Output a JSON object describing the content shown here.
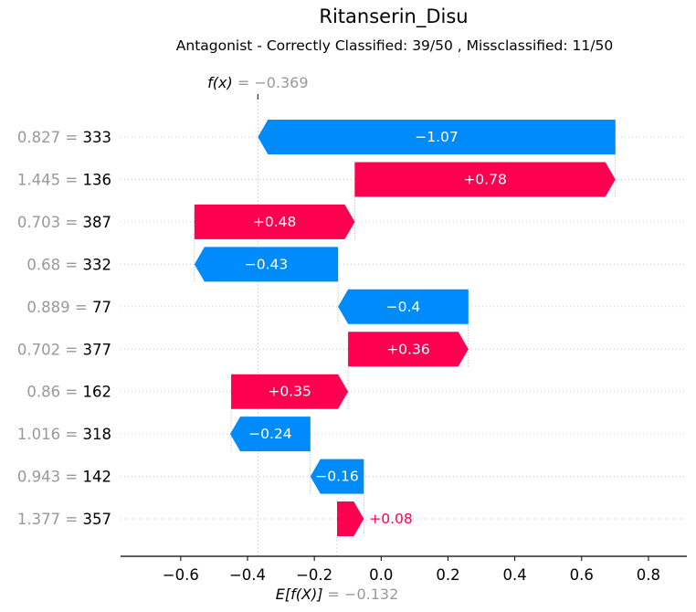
{
  "chart_data": {
    "type": "waterfall",
    "title": "Ritanserin_Disu",
    "subtitle": "Antagonist - Correctly Classified: 39/50 , Missclassified: 11/50",
    "fx": {
      "label_italic": "f(x)",
      "value_text": " = −0.369",
      "value": -0.369
    },
    "efx": {
      "label_italic": "E[f(X)]",
      "value_text": " = −0.132",
      "value": -0.132
    },
    "xlim": [
      -0.78,
      0.915
    ],
    "xticks": [
      -0.6,
      -0.4,
      -0.2,
      0.0,
      0.2,
      0.4,
      0.6,
      0.8
    ],
    "xtick_labels": [
      "−0.6",
      "−0.4",
      "−0.2",
      "0.0",
      "0.2",
      "0.4",
      "0.6",
      "0.8"
    ],
    "features": [
      {
        "value": "0.827",
        "name": "333",
        "start": 0.701,
        "end": -0.369,
        "contribution": -1.07,
        "label": "−1.07",
        "label_inside": true
      },
      {
        "value": "1.445",
        "name": "136",
        "start": -0.079,
        "end": 0.701,
        "contribution": 0.78,
        "label": "+0.78",
        "label_inside": true
      },
      {
        "value": "0.703",
        "name": "387",
        "start": -0.559,
        "end": -0.079,
        "contribution": 0.48,
        "label": "+0.48",
        "label_inside": true
      },
      {
        "value": "0.68",
        "name": "332",
        "start": -0.129,
        "end": -0.559,
        "contribution": -0.43,
        "label": "−0.43",
        "label_inside": true
      },
      {
        "value": "0.889",
        "name": "77",
        "start": 0.261,
        "end": -0.129,
        "contribution": -0.4,
        "label": "−0.4",
        "label_inside": true
      },
      {
        "value": "0.702",
        "name": "377",
        "start": -0.099,
        "end": 0.261,
        "contribution": 0.36,
        "label": "+0.36",
        "label_inside": true
      },
      {
        "value": "0.86",
        "name": "162",
        "start": -0.449,
        "end": -0.099,
        "contribution": 0.35,
        "label": "+0.35",
        "label_inside": true
      },
      {
        "value": "1.016",
        "name": "318",
        "start": -0.212,
        "end": -0.452,
        "contribution": -0.24,
        "label": "−0.24",
        "label_inside": true
      },
      {
        "value": "0.943",
        "name": "142",
        "start": -0.052,
        "end": -0.212,
        "contribution": -0.16,
        "label": "−0.16",
        "label_inside": true
      },
      {
        "value": "1.377",
        "name": "357",
        "start": -0.132,
        "end": -0.052,
        "contribution": 0.08,
        "label": "+0.08",
        "label_inside": false
      }
    ],
    "colors": {
      "positive": "#ff0051",
      "negative": "#008bfb",
      "feature_value": "#999999",
      "grid": "#cccccc",
      "axis": "#000000"
    }
  }
}
